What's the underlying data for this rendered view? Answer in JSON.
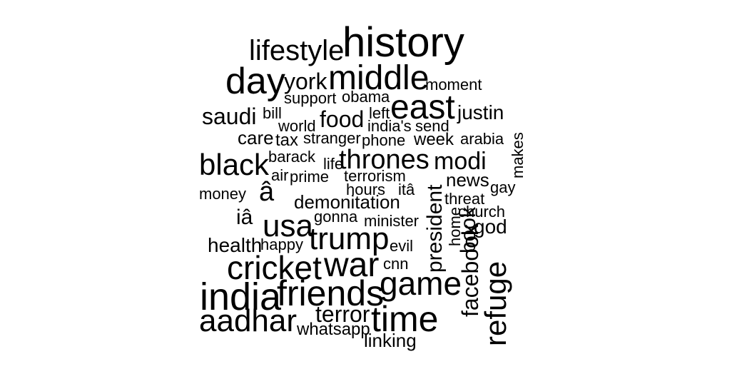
{
  "colors": {
    "background": "#ffffff",
    "text": "#000000"
  },
  "words": [
    {
      "text": "history"
    },
    {
      "text": "lifestyle"
    },
    {
      "text": "day"
    },
    {
      "text": "york"
    },
    {
      "text": "middle"
    },
    {
      "text": "moment"
    },
    {
      "text": "support"
    },
    {
      "text": "obama"
    },
    {
      "text": "east"
    },
    {
      "text": "saudi"
    },
    {
      "text": "bill"
    },
    {
      "text": "food"
    },
    {
      "text": "left"
    },
    {
      "text": "justin"
    },
    {
      "text": "world"
    },
    {
      "text": "india's"
    },
    {
      "text": "send"
    },
    {
      "text": "care"
    },
    {
      "text": "tax"
    },
    {
      "text": "stranger"
    },
    {
      "text": "phone"
    },
    {
      "text": "week"
    },
    {
      "text": "arabia"
    },
    {
      "text": "makes"
    },
    {
      "text": "barack"
    },
    {
      "text": "black"
    },
    {
      "text": "life"
    },
    {
      "text": "thrones"
    },
    {
      "text": "modi"
    },
    {
      "text": "air"
    },
    {
      "text": "prime"
    },
    {
      "text": "terrorism"
    },
    {
      "text": "president"
    },
    {
      "text": "news"
    },
    {
      "text": "money"
    },
    {
      "text": "â"
    },
    {
      "text": "hours"
    },
    {
      "text": "itâ"
    },
    {
      "text": "gay"
    },
    {
      "text": "threat"
    },
    {
      "text": "demonitation"
    },
    {
      "text": "church"
    },
    {
      "text": "iâ"
    },
    {
      "text": "gonna"
    },
    {
      "text": "minister"
    },
    {
      "text": "home"
    },
    {
      "text": "god"
    },
    {
      "text": "usa"
    },
    {
      "text": "book"
    },
    {
      "text": "trump"
    },
    {
      "text": "health"
    },
    {
      "text": "happy"
    },
    {
      "text": "evil"
    },
    {
      "text": "cricket"
    },
    {
      "text": "war"
    },
    {
      "text": "cnn"
    },
    {
      "text": "game"
    },
    {
      "text": "facebook"
    },
    {
      "text": "refuge"
    },
    {
      "text": "india"
    },
    {
      "text": "friends"
    },
    {
      "text": "aadhar"
    },
    {
      "text": "terror"
    },
    {
      "text": "time"
    },
    {
      "text": "whatsapp"
    },
    {
      "text": "linking"
    }
  ]
}
